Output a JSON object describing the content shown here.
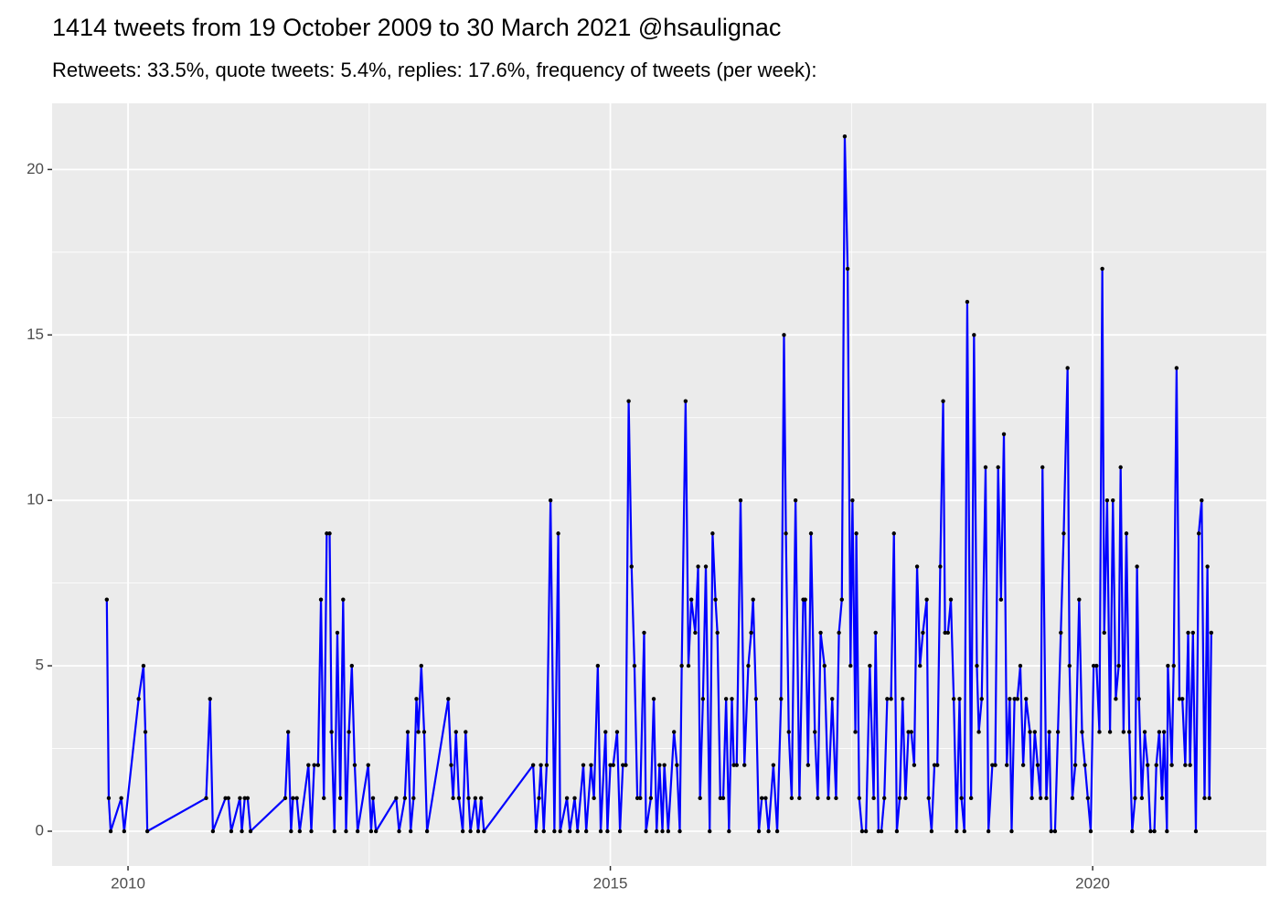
{
  "chart_data": {
    "type": "line",
    "title": "1414 tweets from 19 October 2009 to 30 March 2021 @hsaulignac",
    "subtitle": "Retweets: 33.5%, quote tweets: 5.4%, replies: 17.6%, frequency of tweets (per week):",
    "xlim": [
      2009.213,
      2021.8
    ],
    "xticks": [
      2010,
      2015,
      2020
    ],
    "ylim": [
      -1.05,
      22
    ],
    "yticks": [
      0,
      5,
      10,
      15,
      20
    ],
    "grid": true,
    "point_color": "#000000",
    "x": [
      2009.78,
      2009.8,
      2009.82,
      2009.93,
      2009.96,
      2010.11,
      2010.16,
      2010.18,
      2010.2,
      2010.81,
      2010.85,
      2010.88,
      2011.01,
      2011.04,
      2011.07,
      2011.16,
      2011.18,
      2011.21,
      2011.24,
      2011.27,
      2011.63,
      2011.66,
      2011.69,
      2011.71,
      2011.75,
      2011.78,
      2011.87,
      2011.9,
      2011.93,
      2011.97,
      2012.0,
      2012.03,
      2012.06,
      2012.09,
      2012.11,
      2012.14,
      2012.17,
      2012.2,
      2012.23,
      2012.26,
      2012.29,
      2012.32,
      2012.35,
      2012.38,
      2012.49,
      2012.52,
      2012.54,
      2012.57,
      2012.78,
      2012.81,
      2012.87,
      2012.9,
      2012.93,
      2012.96,
      2012.99,
      2013.01,
      2013.04,
      2013.07,
      2013.1,
      2013.32,
      2013.35,
      2013.37,
      2013.4,
      2013.43,
      2013.47,
      2013.5,
      2013.53,
      2013.55,
      2013.6,
      2013.63,
      2013.66,
      2013.69,
      2014.2,
      2014.23,
      2014.26,
      2014.28,
      2014.31,
      2014.34,
      2014.38,
      2014.42,
      2014.46,
      2014.48,
      2014.55,
      2014.58,
      2014.63,
      2014.66,
      2014.72,
      2014.75,
      2014.8,
      2014.83,
      2014.87,
      2014.9,
      2014.95,
      2014.97,
      2015.0,
      2015.03,
      2015.07,
      2015.1,
      2015.13,
      2015.16,
      2015.19,
      2015.22,
      2015.25,
      2015.28,
      2015.31,
      2015.35,
      2015.37,
      2015.42,
      2015.45,
      2015.48,
      2015.51,
      2015.54,
      2015.56,
      2015.6,
      2015.66,
      2015.69,
      2015.72,
      2015.74,
      2015.78,
      2015.81,
      2015.84,
      2015.88,
      2015.91,
      2015.93,
      2015.96,
      2015.99,
      2016.03,
      2016.06,
      2016.09,
      2016.11,
      2016.14,
      2016.17,
      2016.2,
      2016.23,
      2016.26,
      2016.28,
      2016.31,
      2016.35,
      2016.39,
      2016.43,
      2016.46,
      2016.48,
      2016.51,
      2016.54,
      2016.57,
      2016.61,
      2016.64,
      2016.69,
      2016.73,
      2016.77,
      2016.8,
      2016.82,
      2016.85,
      2016.88,
      2016.92,
      2016.96,
      2017.0,
      2017.02,
      2017.05,
      2017.08,
      2017.12,
      2017.15,
      2017.18,
      2017.22,
      2017.26,
      2017.3,
      2017.34,
      2017.37,
      2017.4,
      2017.43,
      2017.46,
      2017.49,
      2017.51,
      2017.54,
      2017.55,
      2017.58,
      2017.61,
      2017.65,
      2017.69,
      2017.73,
      2017.75,
      2017.78,
      2017.81,
      2017.84,
      2017.87,
      2017.91,
      2017.94,
      2017.97,
      2018.0,
      2018.03,
      2018.06,
      2018.09,
      2018.12,
      2018.15,
      2018.18,
      2018.21,
      2018.24,
      2018.28,
      2018.3,
      2018.33,
      2018.36,
      2018.39,
      2018.42,
      2018.45,
      2018.47,
      2018.5,
      2018.53,
      2018.56,
      2018.59,
      2018.62,
      2018.64,
      2018.67,
      2018.7,
      2018.74,
      2018.77,
      2018.8,
      2018.82,
      2018.85,
      2018.89,
      2018.92,
      2018.96,
      2018.99,
      2019.02,
      2019.05,
      2019.08,
      2019.11,
      2019.14,
      2019.16,
      2019.19,
      2019.22,
      2019.25,
      2019.28,
      2019.31,
      2019.35,
      2019.37,
      2019.4,
      2019.43,
      2019.46,
      2019.48,
      2019.52,
      2019.55,
      2019.57,
      2019.61,
      2019.64,
      2019.67,
      2019.7,
      2019.74,
      2019.76,
      2019.79,
      2019.82,
      2019.86,
      2019.89,
      2019.92,
      2019.95,
      2019.98,
      2020.01,
      2020.04,
      2020.07,
      2020.1,
      2020.12,
      2020.15,
      2020.18,
      2020.21,
      2020.24,
      2020.27,
      2020.29,
      2020.32,
      2020.35,
      2020.38,
      2020.41,
      2020.44,
      2020.46,
      2020.48,
      2020.51,
      2020.54,
      2020.57,
      2020.6,
      2020.64,
      2020.66,
      2020.69,
      2020.72,
      2020.74,
      2020.77,
      2020.78,
      2020.82,
      2020.84,
      2020.87,
      2020.9,
      2020.93,
      2020.96,
      2020.99,
      2021.01,
      2021.04,
      2021.07,
      2021.1,
      2021.13,
      2021.16,
      2021.19,
      2021.21,
      2021.23
    ],
    "series": [
      {
        "color": "#0000ff",
        "values": [
          7,
          1,
          0,
          1,
          0,
          4,
          5,
          3,
          0,
          1,
          4,
          0,
          1,
          1,
          0,
          1,
          0,
          1,
          1,
          0,
          1,
          3,
          0,
          1,
          1,
          0,
          2,
          0,
          2,
          2,
          7,
          1,
          9,
          9,
          3,
          0,
          6,
          1,
          7,
          0,
          3,
          5,
          2,
          0,
          2,
          0,
          1,
          0,
          1,
          0,
          1,
          3,
          0,
          1,
          4,
          3,
          5,
          3,
          0,
          4,
          2,
          1,
          3,
          1,
          0,
          3,
          1,
          0,
          1,
          0,
          1,
          0,
          2,
          0,
          1,
          2,
          0,
          2,
          10,
          0,
          9,
          0,
          1,
          0,
          1,
          0,
          2,
          0,
          2,
          1,
          5,
          0,
          3,
          0,
          2,
          2,
          3,
          0,
          2,
          2,
          13,
          8,
          5,
          1,
          1,
          6,
          0,
          1,
          4,
          0,
          2,
          0,
          2,
          0,
          3,
          2,
          0,
          5,
          13,
          5,
          7,
          6,
          8,
          1,
          4,
          8,
          0,
          9,
          7,
          6,
          1,
          1,
          4,
          0,
          4,
          2,
          2,
          10,
          2,
          5,
          6,
          7,
          4,
          0,
          1,
          1,
          0,
          2,
          0,
          4,
          15,
          9,
          3,
          1,
          10,
          1,
          7,
          7,
          2,
          9,
          3,
          1,
          6,
          5,
          1,
          4,
          1,
          6,
          7,
          21,
          17,
          5,
          10,
          3,
          9,
          1,
          0,
          0,
          5,
          1,
          6,
          0,
          0,
          1,
          4,
          4,
          9,
          0,
          1,
          4,
          1,
          3,
          3,
          2,
          8,
          5,
          6,
          7,
          1,
          0,
          2,
          2,
          8,
          13,
          6,
          6,
          7,
          4,
          0,
          4,
          1,
          0,
          16,
          1,
          15,
          5,
          3,
          4,
          11,
          0,
          2,
          2,
          11,
          7,
          12,
          2,
          4,
          0,
          4,
          4,
          5,
          2,
          4,
          3,
          1,
          3,
          2,
          1,
          11,
          1,
          3,
          0,
          0,
          3,
          6,
          9,
          14,
          5,
          1,
          2,
          7,
          3,
          2,
          1,
          0,
          5,
          5,
          3,
          17,
          6,
          10,
          3,
          10,
          4,
          5,
          11,
          3,
          9,
          3,
          0,
          1,
          8,
          4,
          1,
          3,
          2,
          0,
          0,
          2,
          3,
          1,
          3,
          0,
          5,
          2,
          5,
          14,
          4,
          4,
          2,
          6,
          2,
          6,
          0,
          9,
          10,
          1,
          8,
          1,
          6
        ]
      }
    ]
  }
}
